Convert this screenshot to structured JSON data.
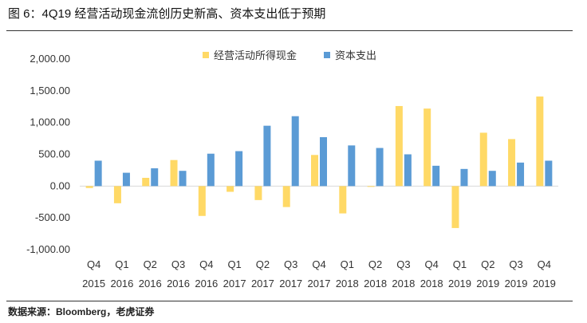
{
  "header": {
    "title": "图 6：4Q19 经营活动现金流创历史新高、资本支出低于预期"
  },
  "footer": {
    "source": "数据来源：Bloomberg，老虎证券"
  },
  "colors": {
    "operating": "#FFD966",
    "capex": "#5B9BD5",
    "axis": "#D9D9D9"
  },
  "chart_data": {
    "type": "bar",
    "title": "4Q19 经营活动现金流创历史新高、资本支出低于预期",
    "categories": [
      {
        "quarter": "Q4",
        "year": "2015"
      },
      {
        "quarter": "Q1",
        "year": "2016"
      },
      {
        "quarter": "Q2",
        "year": "2016"
      },
      {
        "quarter": "Q3",
        "year": "2016"
      },
      {
        "quarter": "Q4",
        "year": "2016"
      },
      {
        "quarter": "Q1",
        "year": "2017"
      },
      {
        "quarter": "Q2",
        "year": "2017"
      },
      {
        "quarter": "Q3",
        "year": "2017"
      },
      {
        "quarter": "Q4",
        "year": "2017"
      },
      {
        "quarter": "Q1",
        "year": "2018"
      },
      {
        "quarter": "Q2",
        "year": "2018"
      },
      {
        "quarter": "Q3",
        "year": "2018"
      },
      {
        "quarter": "Q4",
        "year": "2018"
      },
      {
        "quarter": "Q1",
        "year": "2019"
      },
      {
        "quarter": "Q2",
        "year": "2019"
      },
      {
        "quarter": "Q3",
        "year": "2019"
      },
      {
        "quarter": "Q4",
        "year": "2019"
      }
    ],
    "series": [
      {
        "name": "经营活动所得现金",
        "values": [
          -30,
          -270,
          130,
          410,
          -470,
          -90,
          -220,
          -330,
          490,
          -430,
          -10,
          1260,
          1220,
          -660,
          840,
          740,
          1410
        ]
      },
      {
        "name": "资本支出",
        "values": [
          400,
          210,
          280,
          240,
          510,
          550,
          950,
          1100,
          770,
          640,
          600,
          500,
          320,
          270,
          240,
          370,
          400
        ]
      }
    ],
    "ylim": [
      -1000,
      2000
    ],
    "yticks": [
      "2,000.00",
      "1,500.00",
      "1,000.00",
      "500.00",
      "0.00",
      "-500.00",
      "-1,000.00"
    ],
    "ytick_values": [
      2000,
      1500,
      1000,
      500,
      0,
      -500,
      -1000
    ],
    "xlabel": "",
    "ylabel": "",
    "legend": "top-center"
  }
}
